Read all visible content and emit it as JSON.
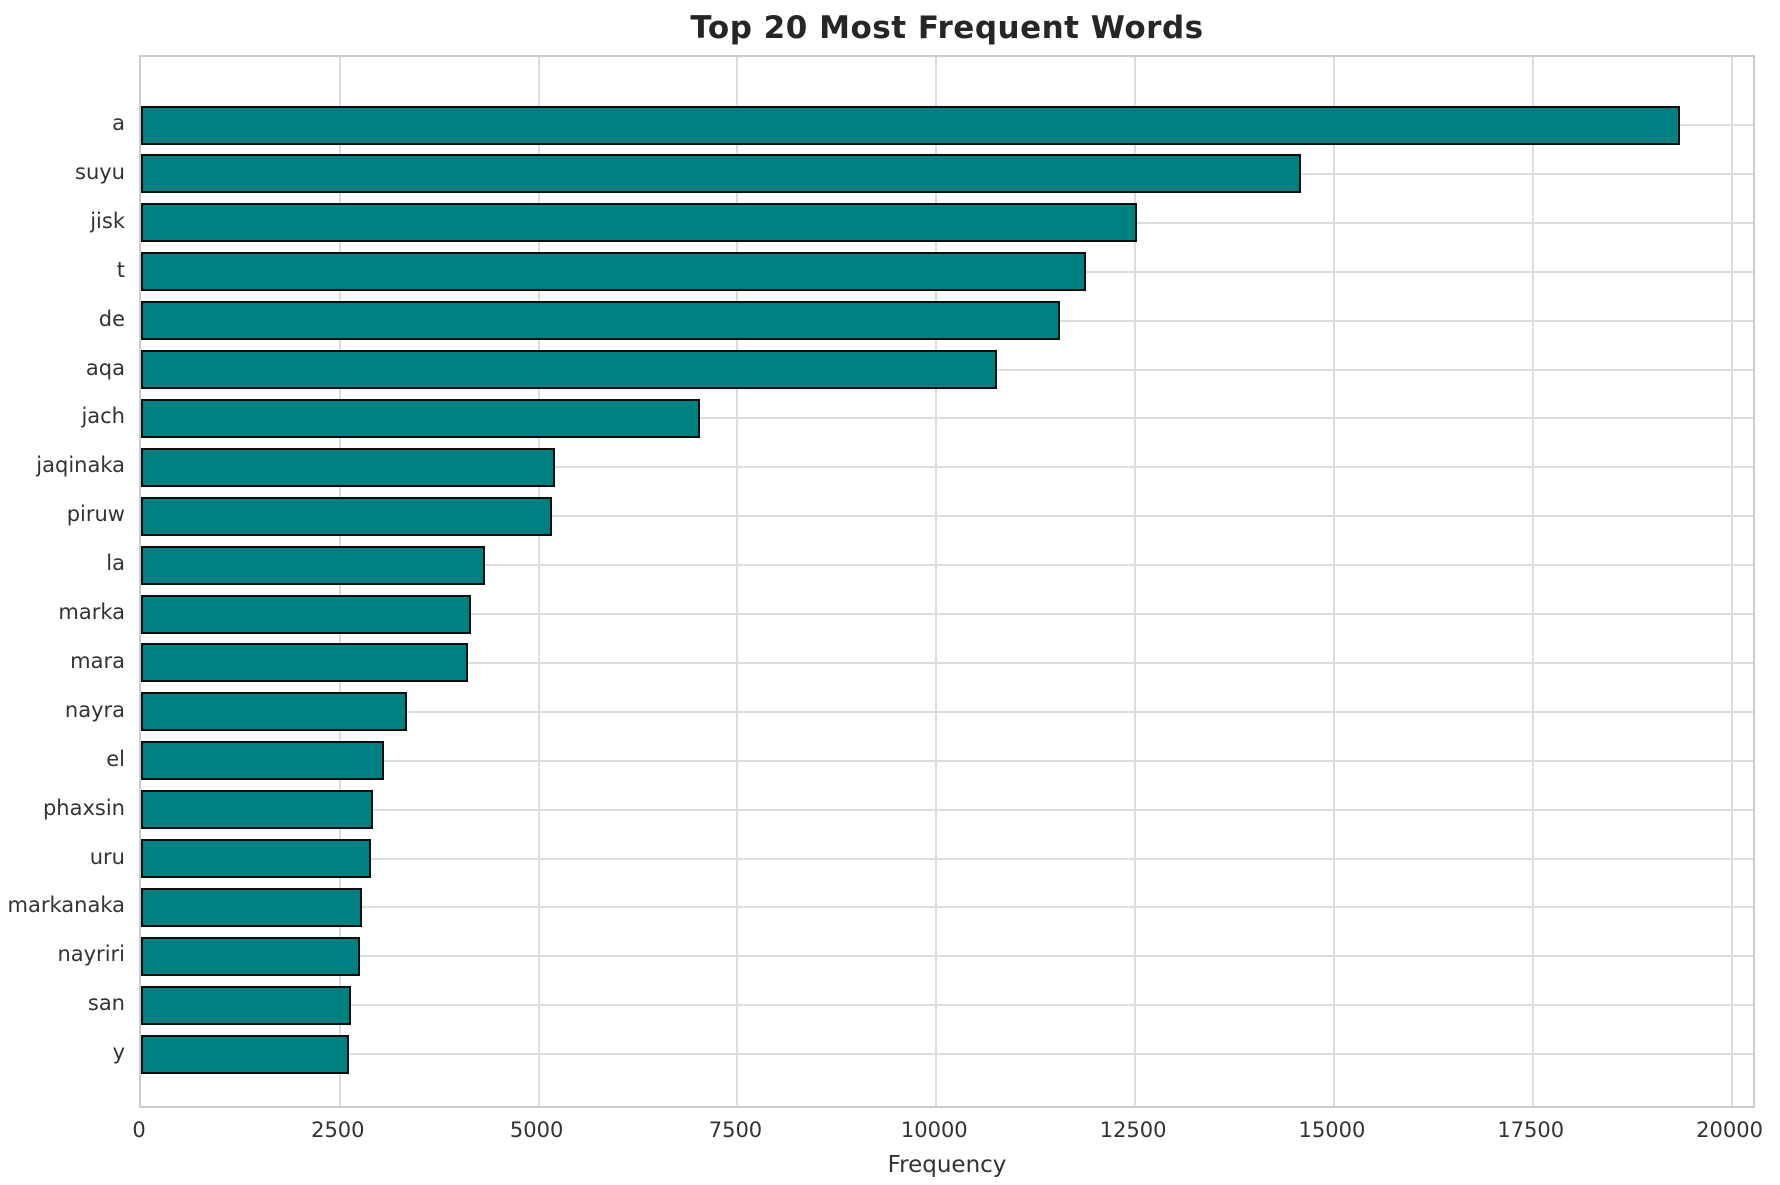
{
  "chart_data": {
    "type": "bar",
    "orientation": "horizontal",
    "title": "Top 20 Most Frequent Words",
    "xlabel": "Frequency",
    "ylabel": "",
    "categories": [
      "a",
      "suyu",
      "jisk",
      "t",
      "de",
      "aqa",
      "jach",
      "jaqinaka",
      "piruw",
      "la",
      "marka",
      "mara",
      "nayra",
      "el",
      "phaxsin",
      "uru",
      "markanaka",
      "nayriri",
      "san",
      "y"
    ],
    "values": [
      19350,
      14580,
      12520,
      11880,
      11550,
      10760,
      7030,
      5200,
      5170,
      4330,
      4150,
      4110,
      3340,
      3060,
      2920,
      2890,
      2780,
      2760,
      2640,
      2610
    ],
    "xticks": [
      0,
      2500,
      5000,
      7500,
      10000,
      12500,
      15000,
      17500,
      20000
    ],
    "xlim": [
      0,
      20320
    ],
    "grid": true,
    "legend": false,
    "bar_color": "#008080",
    "bar_edge_color": "#0d0d0d",
    "grid_color": "#dcdcdc",
    "title_color": "#262626",
    "tick_label_color": "#333333"
  }
}
